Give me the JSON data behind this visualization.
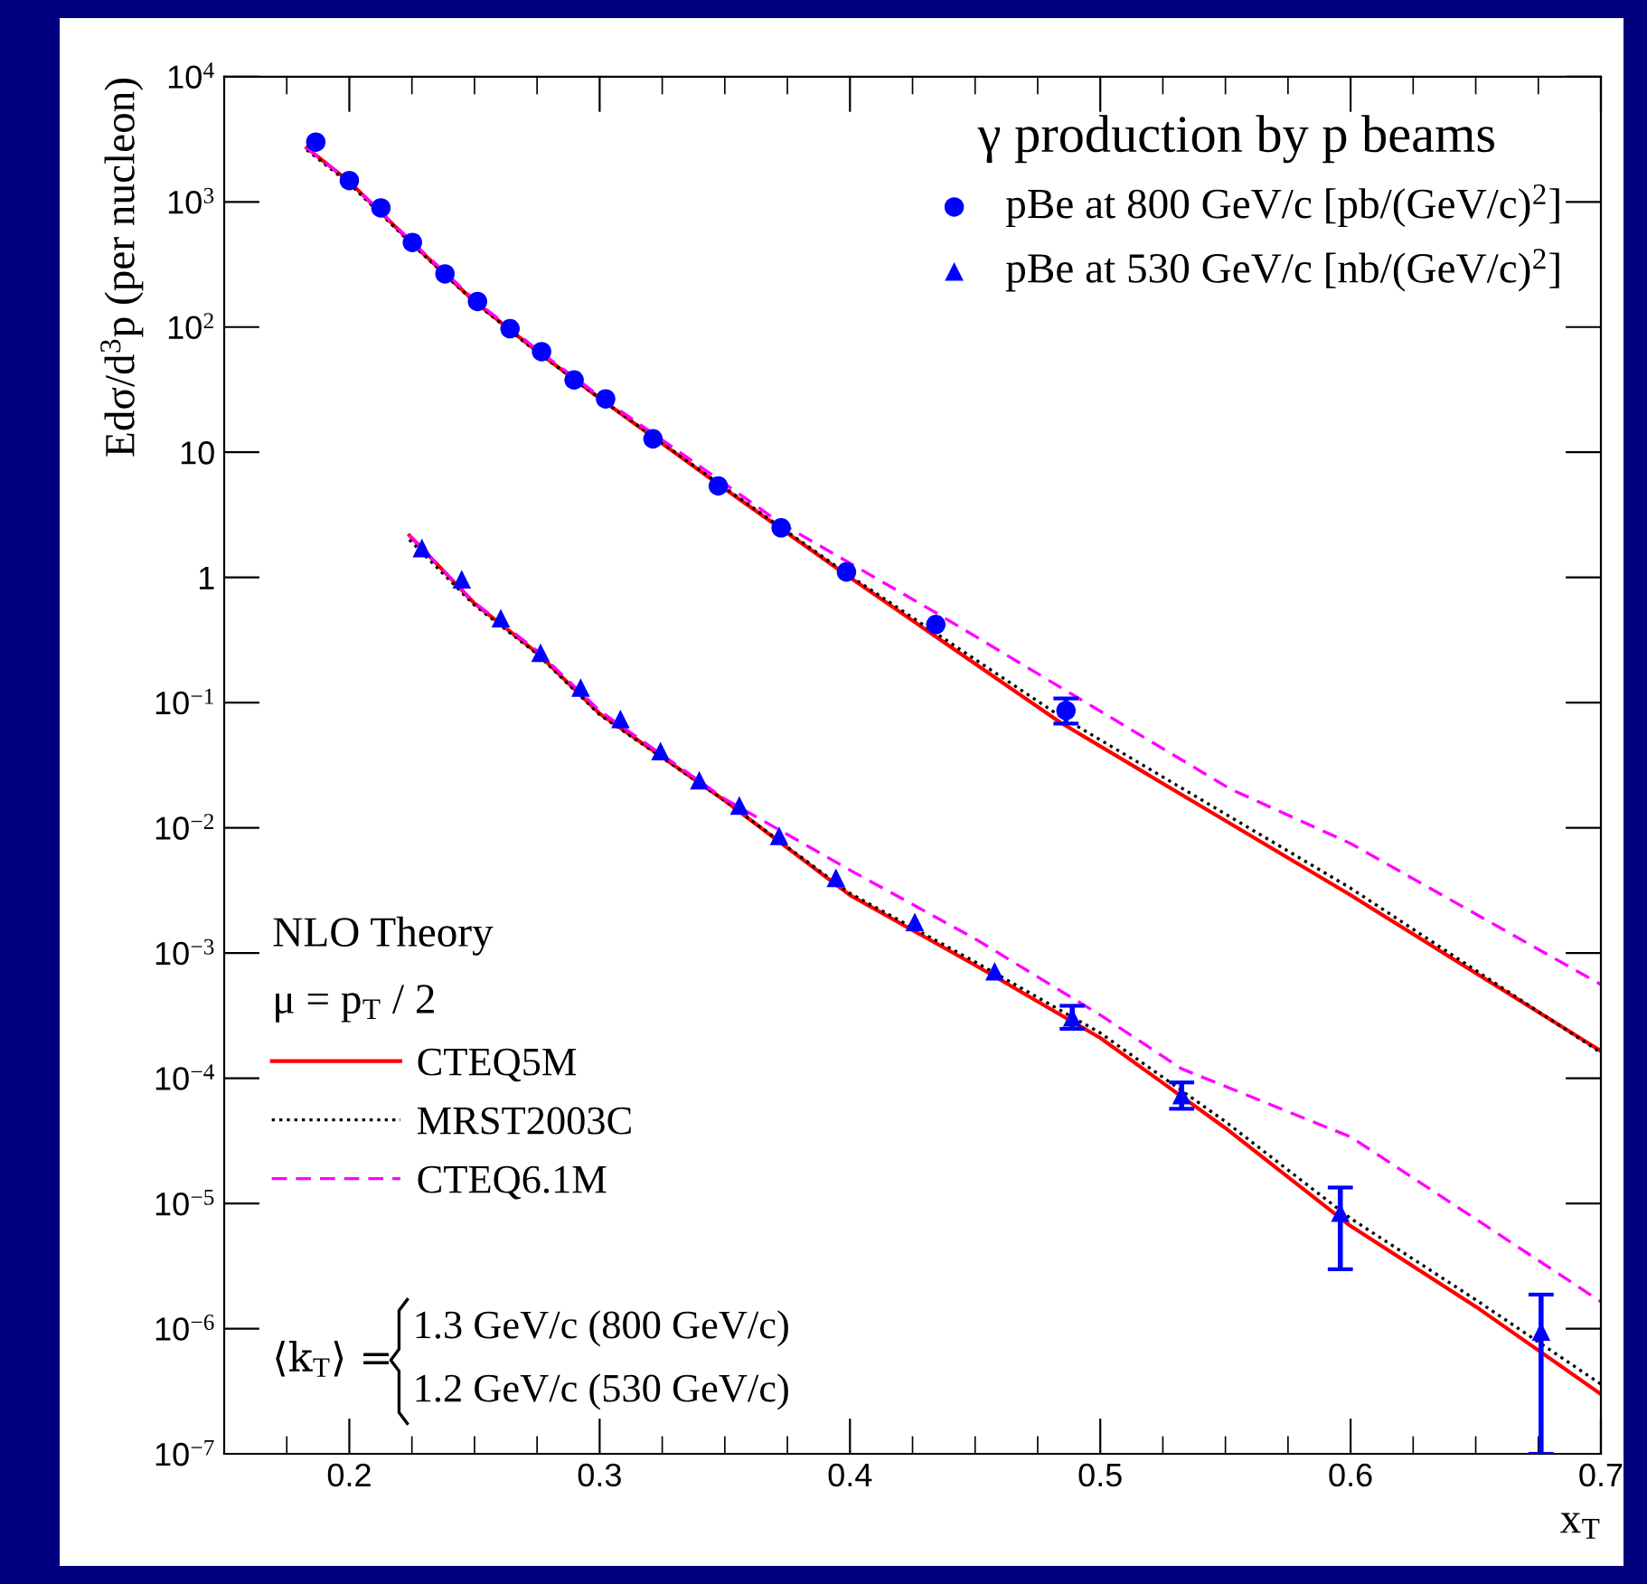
{
  "chart_data": {
    "type": "scatter",
    "xlabel": "x$_{T}$",
    "ylabel": "Edσ/d$^{3}$p (per nucleon)",
    "legend_title": "γ production by p beams",
    "legend": "top right",
    "log": "y",
    "xlim": [
      0.15,
      0.7
    ],
    "xticks": [
      0.2,
      0.3,
      0.4,
      0.5,
      0.6,
      0.7
    ],
    "ylim": [
      1e-07,
      10000
    ],
    "yticks": [
      {
        "value": 1e-07,
        "label": "10$^{−7}$"
      },
      {
        "value": 1e-06,
        "label": "10$^{−6}$"
      },
      {
        "value": 1e-05,
        "label": "10$^{−5}$"
      },
      {
        "value": 0.0001,
        "label": "10$^{−4}$"
      },
      {
        "value": 0.001,
        "label": "10$^{−3}$"
      },
      {
        "value": 0.01,
        "label": "10$^{−2}$"
      },
      {
        "value": 0.1,
        "label": "10$^{−1}$"
      },
      1,
      10,
      {
        "value": 100,
        "label": "10$^{2}$"
      },
      {
        "value": 1000,
        "label": "10$^{3}$"
      },
      {
        "value": 10000,
        "label": "10$^{4}$"
      }
    ],
    "grid": false,
    "annotations": [
      "NLO Theory",
      "μ = p$_{T}$ / 2",
      "⟨k$_{T}$⟩ =",
      "1.3 GeV/c (800 GeV/c)",
      "1.2 GeV/c (530 GeV/c)"
    ],
    "series": [
      {
        "type": "line",
        "name": "CTEQ5M",
        "color": "#ff0000",
        "line_style": "solid",
        "x": [
          0.183,
          0.2,
          0.225,
          0.25,
          0.275,
          0.3,
          0.35,
          0.4,
          0.484,
          0.6,
          0.7
        ],
        "values": [
          2700,
          1450,
          470,
          160,
          64,
          27,
          5.1,
          1.0,
          0.0695,
          0.0029,
          0.000165
        ]
      },
      {
        "type": "line",
        "name": "MRST2003C",
        "color": "#000000",
        "line_style": "dotted",
        "x": [
          0.183,
          0.2,
          0.225,
          0.25,
          0.275,
          0.3,
          0.35,
          0.4,
          0.484,
          0.6,
          0.7
        ],
        "values": [
          2600,
          1400,
          460,
          158,
          63,
          27,
          5.2,
          1.03,
          0.078,
          0.0033,
          0.00016
        ]
      },
      {
        "type": "line",
        "name": "CTEQ6.1M",
        "color": "#ff00ff",
        "line_style": "dashed",
        "x": [
          0.183,
          0.2,
          0.225,
          0.25,
          0.275,
          0.3,
          0.35,
          0.3725,
          0.4345,
          0.552,
          0.6,
          0.7
        ],
        "values": [
          2700,
          1450,
          480,
          165,
          66,
          28,
          5.6,
          2.7,
          0.52,
          0.0204,
          0.0075,
          0.00056
        ]
      },
      {
        "type": "line",
        "color": "#ff0000",
        "line_style": "solid",
        "x": [
          0.224,
          0.25,
          0.275,
          0.3,
          0.35,
          0.4,
          0.45,
          0.5,
          0.55,
          0.6,
          0.65,
          0.7
        ],
        "values": [
          2.17,
          0.62,
          0.25,
          0.0817,
          0.0165,
          0.0029,
          0.0008,
          0.00021,
          4e-05,
          6.6e-06,
          1.5e-06,
          3e-07
        ]
      },
      {
        "type": "line",
        "color": "#000000",
        "line_style": "dotted",
        "x": [
          0.224,
          0.25,
          0.275,
          0.3,
          0.35,
          0.4,
          0.45,
          0.5,
          0.55,
          0.6,
          0.65,
          0.7
        ],
        "values": [
          2.0,
          0.6,
          0.245,
          0.08,
          0.0165,
          0.003,
          0.00085,
          0.00023,
          4.5e-05,
          7.6e-06,
          1.7e-06,
          3.6e-07
        ]
      },
      {
        "type": "line",
        "color": "#ff00ff",
        "line_style": "dashed",
        "x": [
          0.224,
          0.25,
          0.275,
          0.3,
          0.35,
          0.4,
          0.45,
          0.5,
          0.5325,
          0.6,
          0.65,
          0.7
        ],
        "values": [
          2.17,
          0.63,
          0.26,
          0.086,
          0.017,
          0.0046,
          0.0013,
          0.00032,
          0.000119,
          3.4e-05,
          7.5e-06,
          1.64e-06
        ]
      },
      {
        "name": "pBe at 800 GeV/c [pb/(GeV/c)$^{2}$]",
        "color": "#0000ff",
        "marker": "circle",
        "x": [
          0.1866,
          0.2,
          0.2126,
          0.2252,
          0.2382,
          0.2512,
          0.2642,
          0.2768,
          0.2898,
          0.3024,
          0.3213,
          0.3474,
          0.3725,
          0.3986,
          0.4343,
          0.4863
        ],
        "values": [
          3000,
          1480,
          895,
          474,
          266,
          160,
          97,
          63.6,
          37.8,
          26.7,
          12.8,
          5.38,
          2.49,
          1.106,
          0.42,
          0.0865
        ],
        "errors": [
          null,
          null,
          null,
          null,
          null,
          null,
          null,
          null,
          null,
          null,
          null,
          null,
          null,
          null,
          null,
          [
            0.068,
            0.108
          ]
        ]
      },
      {
        "name": "pBe at 530 GeV/c [nb/(GeV/c)$^{2}$]",
        "color": "#0000ff",
        "marker": "triangle",
        "x": [
          0.229,
          0.2449,
          0.2605,
          0.2764,
          0.2924,
          0.3083,
          0.3243,
          0.3398,
          0.3558,
          0.3717,
          0.3944,
          0.4259,
          0.4578,
          0.4888,
          0.5325,
          0.5959,
          0.6761
        ],
        "values": [
          1.72,
          0.966,
          0.473,
          0.25,
          0.132,
          0.074,
          0.041,
          0.024,
          0.0151,
          0.00863,
          0.00399,
          0.00177,
          0.000716,
          0.000306,
          7.35e-05,
          8.45e-06,
          9.5e-07
        ],
        "errors": [
          null,
          null,
          null,
          null,
          null,
          null,
          null,
          null,
          null,
          null,
          null,
          null,
          null,
          [
            0.000248,
            0.000379
          ],
          [
            5.7e-05,
            9.25e-05
          ],
          [
            2.98e-06,
            1.34e-05
          ],
          [
            1e-07,
            1.87e-06
          ]
        ]
      }
    ]
  }
}
